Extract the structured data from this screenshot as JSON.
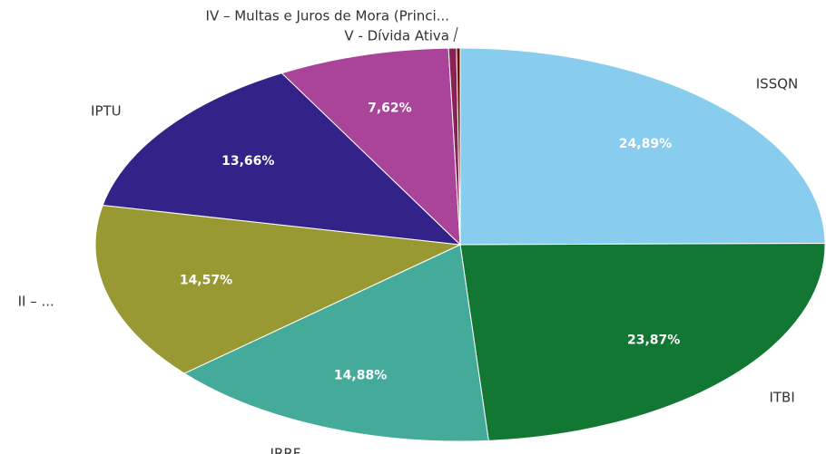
{
  "chart_data": {
    "type": "pie",
    "categories": [
      "ISSQN",
      "ITBI",
      "IRRF",
      "II – ...",
      "IPTU",
      null,
      "IV – Multas e Juros de Mora (Princi...",
      "V - Dívida Ativa"
    ],
    "values": [
      24.89,
      23.87,
      14.88,
      14.57,
      13.66,
      7.62,
      0.35,
      0.16
    ],
    "value_labels": [
      "24,89%",
      "23,87%",
      "14,88%",
      "14,57%",
      "13,66%",
      "7,62%",
      null,
      null
    ],
    "colors": [
      "#88ccee",
      "#117733",
      "#44aa99",
      "#999933",
      "#332288",
      "#aa4499",
      "#882255",
      "#661100"
    ]
  }
}
